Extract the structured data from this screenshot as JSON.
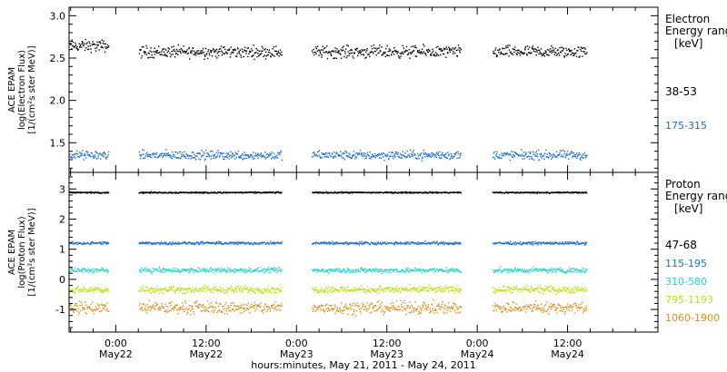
{
  "chart_data": {
    "type": "scatter",
    "xlabel": "hours:minutes, May 21, 2011 - May 24, 2011",
    "x_ticks": [
      {
        "time": "0:00",
        "date": "May22",
        "h": 24
      },
      {
        "time": "12:00",
        "date": "May22",
        "h": 36
      },
      {
        "time": "0:00",
        "date": "May23",
        "h": 48
      },
      {
        "time": "12:00",
        "date": "May23",
        "h": 60
      },
      {
        "time": "0:00",
        "date": "May24",
        "h": 72
      },
      {
        "time": "12:00",
        "date": "May24",
        "h": 84
      }
    ],
    "xlim_hours": [
      17.8,
      96
    ],
    "data_segments_hours": [
      [
        17.8,
        23.0
      ],
      [
        27.0,
        46.0
      ],
      [
        50.0,
        69.8
      ],
      [
        74.0,
        86.5
      ]
    ],
    "panels": [
      {
        "ylabel": [
          "ACE EPAM",
          "log(Electron Flux)",
          "[1/(cm²s ster MeV)]"
        ],
        "ylim": [
          1.15,
          3.1
        ],
        "yticks": [
          "1.5",
          "2.0",
          "2.5",
          "3.0"
        ],
        "ytick_values": [
          1.5,
          2.0,
          2.5,
          3.0
        ],
        "legend_title": [
          "Electron",
          "Energy range"
        ],
        "legend_unit": "[keV]",
        "series": [
          {
            "name": "38-53",
            "color": "#000000",
            "mean": 2.58,
            "spread": 0.06
          },
          {
            "name": "175-315",
            "color": "#1f6fd0",
            "mean": 1.36,
            "spread": 0.045
          }
        ]
      },
      {
        "ylabel": [
          "ACE EPAM",
          "log(Proton Flux)",
          "[1/(cm²s ster MeV)]"
        ],
        "ylim": [
          -1.75,
          3.55
        ],
        "yticks": [
          "-1",
          "0",
          "1",
          "2",
          "3"
        ],
        "ytick_values": [
          -1,
          0,
          1,
          2,
          3
        ],
        "legend_title": [
          "Proton",
          "Energy range"
        ],
        "legend_unit": "[keV]",
        "series": [
          {
            "name": "47-68",
            "color": "#000000",
            "mean": 2.9,
            "spread": 0.02
          },
          {
            "name": "115-195",
            "color": "#1f6fd0",
            "mean": 1.22,
            "spread": 0.04
          },
          {
            "name": "310-580",
            "color": "#22d6cc",
            "mean": 0.32,
            "spread": 0.07
          },
          {
            "name": "795-1193",
            "color": "#b8e010",
            "mean": -0.32,
            "spread": 0.1
          },
          {
            "name": "1060-1900",
            "color": "#e88a18",
            "mean": -0.92,
            "spread": 0.17
          }
        ]
      }
    ]
  }
}
